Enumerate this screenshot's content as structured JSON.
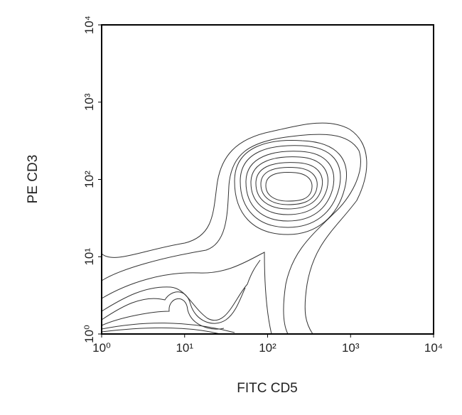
{
  "chart_data": {
    "type": "contour",
    "xlabel": "FITC CD5",
    "ylabel": "PE CD3",
    "log_x": true,
    "log_y": true,
    "xlim": [
      1,
      10000
    ],
    "ylim": [
      1,
      10000
    ],
    "xticks": [
      {
        "value": 1,
        "label": "10⁰"
      },
      {
        "value": 10,
        "label": "10¹"
      },
      {
        "value": 100,
        "label": "10²"
      },
      {
        "value": 1000,
        "label": "10³"
      },
      {
        "value": 10000,
        "label": "10⁴"
      }
    ],
    "yticks": [
      {
        "value": 1,
        "label": "10⁰"
      },
      {
        "value": 10,
        "label": "10¹"
      },
      {
        "value": 100,
        "label": "10²"
      },
      {
        "value": 1000,
        "label": "10³"
      },
      {
        "value": 10000,
        "label": "10⁴"
      }
    ]
  }
}
